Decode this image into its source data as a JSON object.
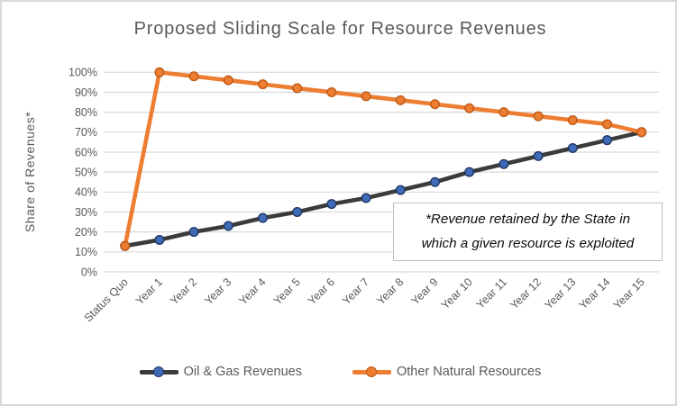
{
  "colors": {
    "frame_border": "#d9d9d9",
    "background": "#ffffff",
    "title_text": "#595959",
    "axis_text": "#595959",
    "gridline": "#d9d9d9",
    "annotation_border": "#bfbfbf",
    "annotation_text": "#0d0d0d"
  },
  "chart_data": {
    "type": "line",
    "title": "Proposed Sliding Scale for Resource Revenues",
    "xlabel": "",
    "ylabel": "Share of Revenues*",
    "ylim": [
      0,
      100
    ],
    "grid": "horizontal",
    "legend_position": "bottom",
    "y_ticks": [
      "0%",
      "10%",
      "20%",
      "30%",
      "40%",
      "50%",
      "60%",
      "70%",
      "80%",
      "90%",
      "100%"
    ],
    "categories": [
      "Status Quo",
      "Year 1",
      "Year 2",
      "Year 3",
      "Year 4",
      "Year 5",
      "Year 6",
      "Year 7",
      "Year 8",
      "Year 9",
      "Year 10",
      "Year 11",
      "Year 12",
      "Year 13",
      "Year 14",
      "Year 15"
    ],
    "series": [
      {
        "name": "Oil & Gas Revenues",
        "values": [
          13,
          16,
          20,
          23,
          27,
          30,
          34,
          37,
          41,
          45,
          50,
          54,
          58,
          62,
          66,
          70
        ],
        "line_color": "#3b3b3b",
        "marker_color": "#3f6bb6",
        "marker_border": "#1f3864"
      },
      {
        "name": "Other Natural Resources",
        "values": [
          13,
          100,
          98,
          96,
          94,
          92,
          90,
          88,
          86,
          84,
          82,
          80,
          78,
          76,
          74,
          70
        ],
        "line_color": "#ed7d31",
        "marker_color": "#ed7d31",
        "marker_border": "#be5a17"
      }
    ],
    "annotation": {
      "lines": [
        "*Revenue retained by the State in",
        "which a given resource is exploited"
      ]
    }
  }
}
